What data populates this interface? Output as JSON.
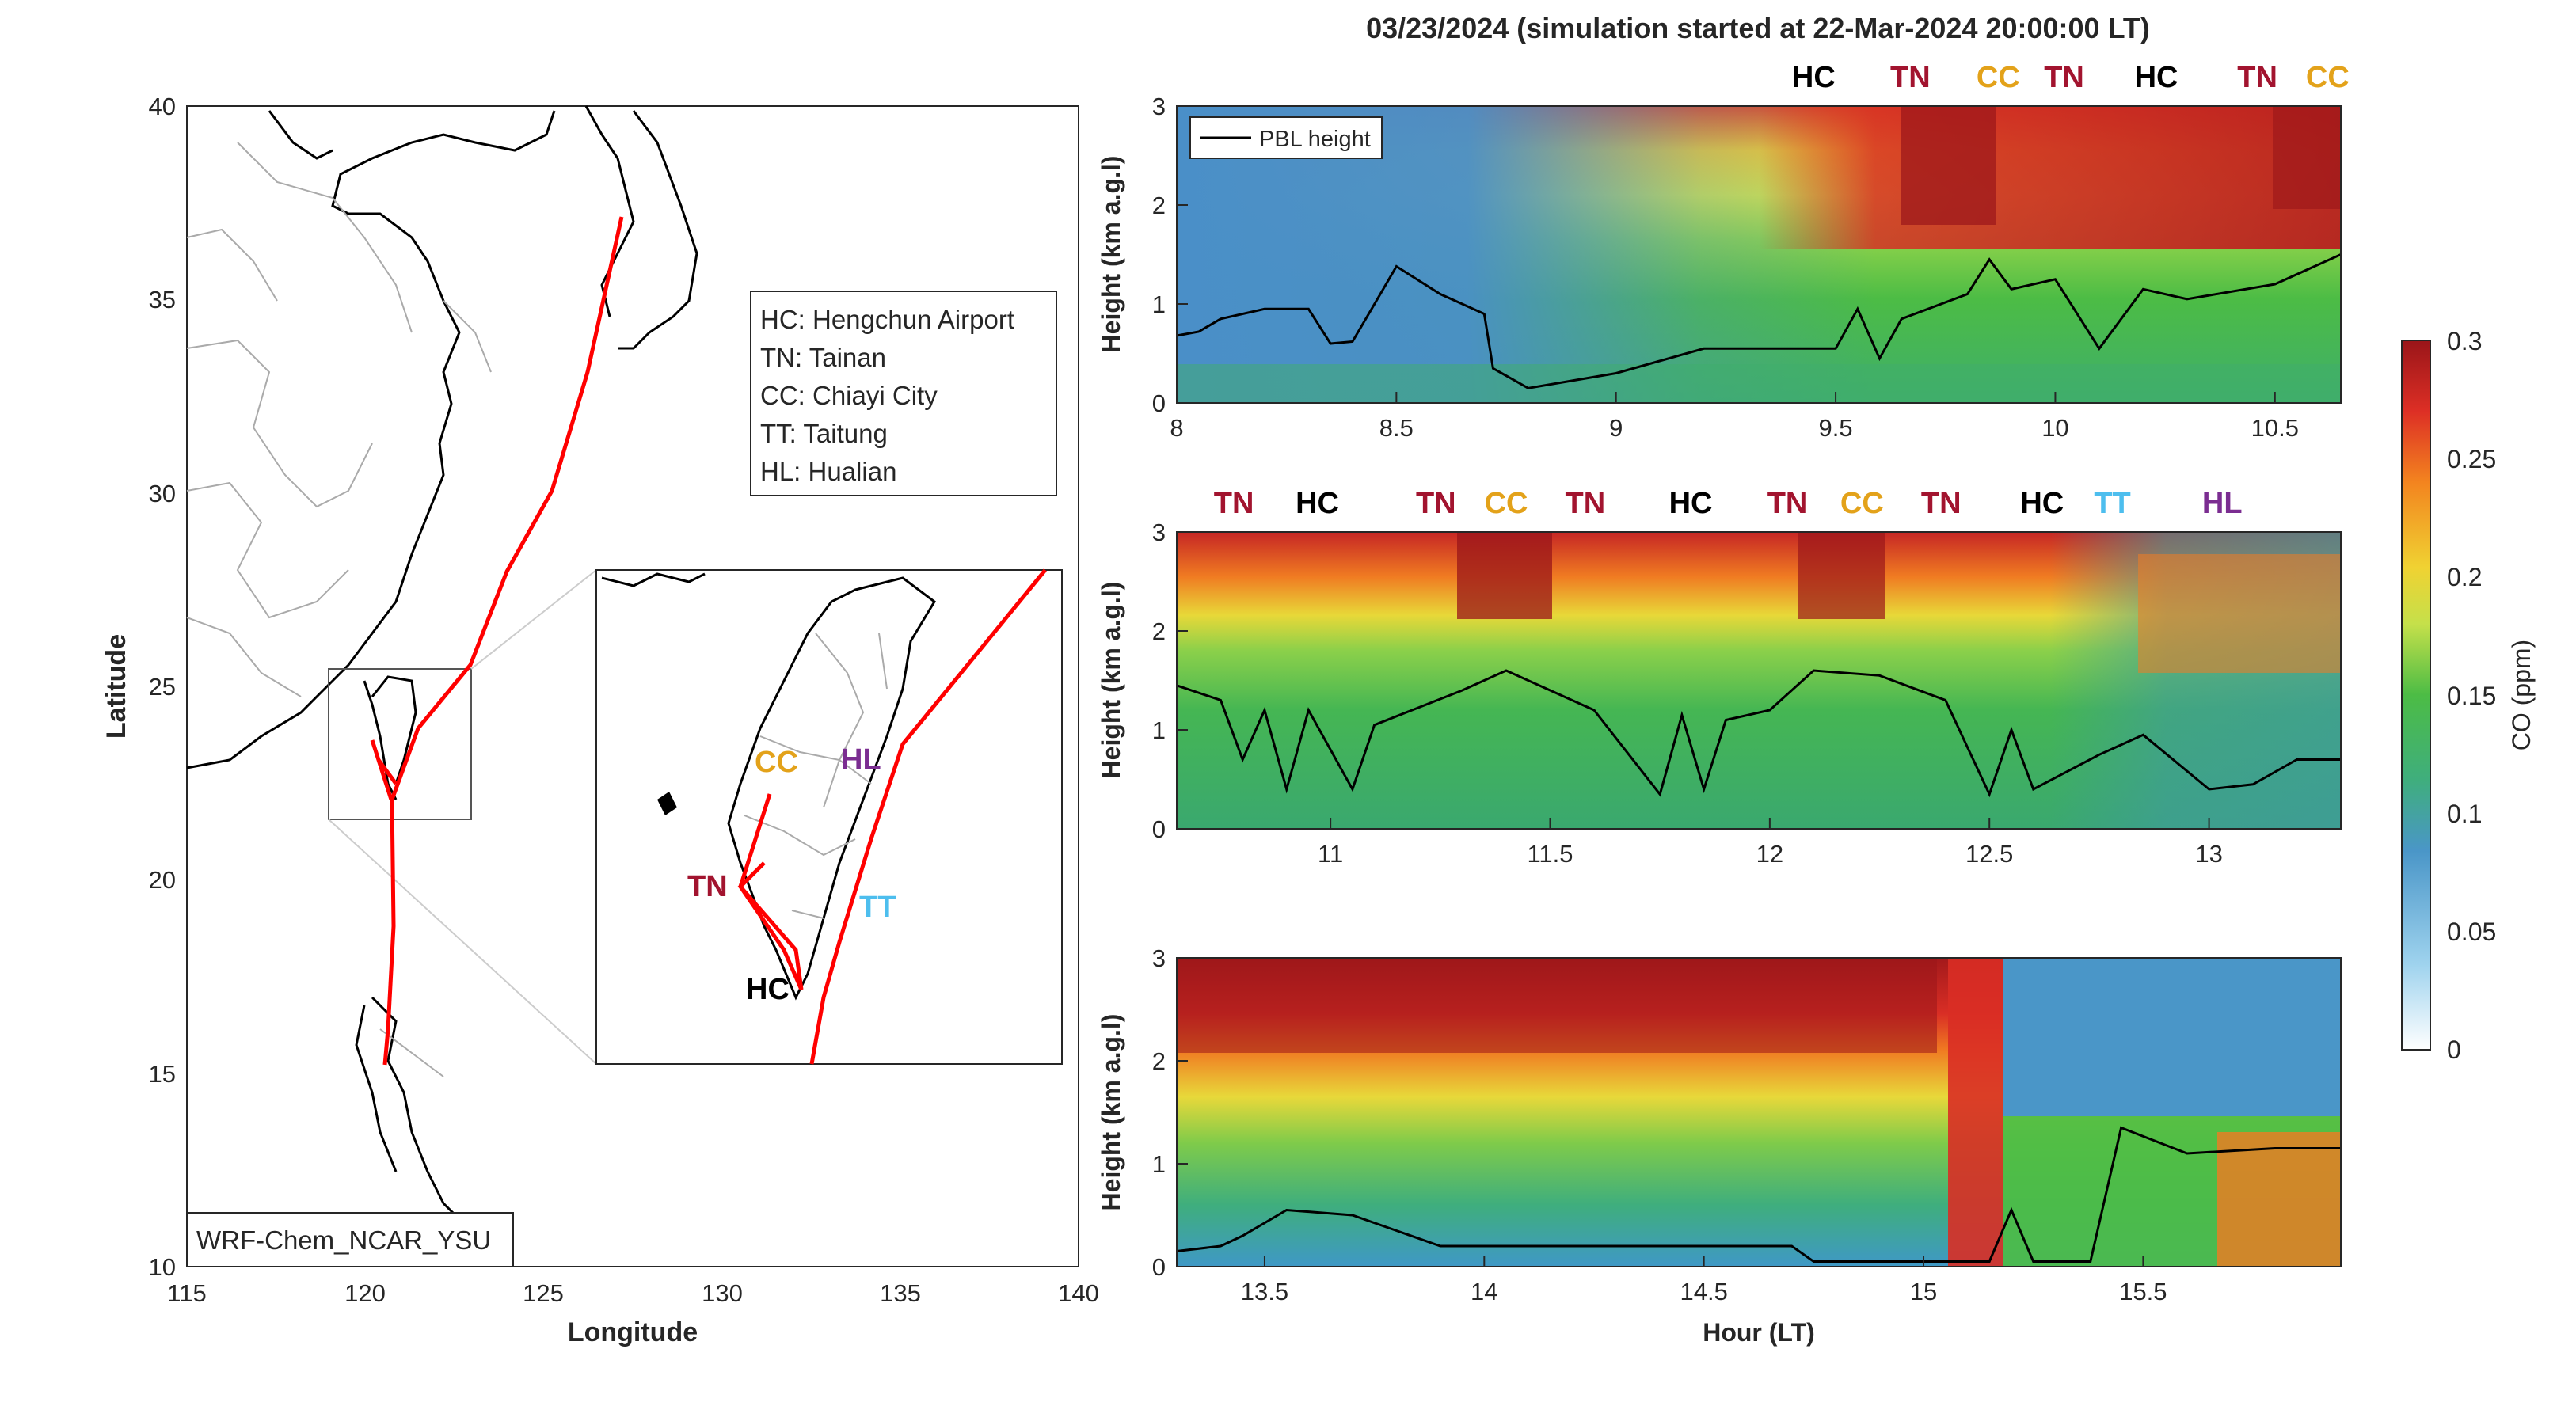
{
  "figure": {
    "title": "03/23/2024 (simulation started at 22-Mar-2024 20:00:00 LT)",
    "model_label": "WRF-Chem_NCAR_YSU"
  },
  "map": {
    "xlabel": "Longitude",
    "ylabel": "Latitude",
    "xlim": [
      115,
      140
    ],
    "ylim": [
      10,
      40
    ],
    "xticks": [
      "115",
      "120",
      "125",
      "130",
      "135",
      "140"
    ],
    "yticks": [
      "10",
      "15",
      "20",
      "25",
      "30",
      "35",
      "40"
    ],
    "legend_lines": [
      "HC: Hengchun Airport",
      "TN: Tainan",
      "CC: Chiayi City",
      "TT: Taitung",
      "HL: Hualian"
    ],
    "inset_labels": [
      {
        "text": "CC",
        "color": "#E3A21A"
      },
      {
        "text": "HL",
        "color": "#7B2D91"
      },
      {
        "text": "TN",
        "color": "#A2142F"
      },
      {
        "text": "TT",
        "color": "#4DBEEE"
      },
      {
        "text": "HC",
        "color": "#000000"
      }
    ],
    "flight_track_color": "#FF0000"
  },
  "colorbar": {
    "label": "CO (ppm)",
    "ticks": [
      "0",
      "0.05",
      "0.1",
      "0.15",
      "0.2",
      "0.25",
      "0.3"
    ]
  },
  "chart_data": [
    {
      "type": "heatmap",
      "xlabel": "",
      "ylabel": "Height (km a.g.l)",
      "xlim": [
        8,
        10.65
      ],
      "ylim": [
        0,
        3
      ],
      "xticks": [
        "8",
        "8.5",
        "9",
        "9.5",
        "10",
        "10.5"
      ],
      "yticks": [
        "0",
        "1",
        "2",
        "3"
      ],
      "legend": "PBL height",
      "site_labels": [
        {
          "text": "HC",
          "x": 9.45,
          "color": "#000000"
        },
        {
          "text": "TN",
          "x": 9.67,
          "color": "#A2142F"
        },
        {
          "text": "CC",
          "x": 9.87,
          "color": "#E3A21A"
        },
        {
          "text": "TN",
          "x": 10.02,
          "color": "#A2142F"
        },
        {
          "text": "HC",
          "x": 10.23,
          "color": "#000000"
        },
        {
          "text": "TN",
          "x": 10.46,
          "color": "#A2142F"
        },
        {
          "text": "CC",
          "x": 10.62,
          "color": "#E3A21A"
        }
      ],
      "pbl_height_km": [
        [
          8,
          0.68
        ],
        [
          8.05,
          0.72
        ],
        [
          8.1,
          0.85
        ],
        [
          8.2,
          0.95
        ],
        [
          8.3,
          0.95
        ],
        [
          8.35,
          0.6
        ],
        [
          8.4,
          0.62
        ],
        [
          8.47,
          1.15
        ],
        [
          8.5,
          1.38
        ],
        [
          8.6,
          1.1
        ],
        [
          8.7,
          0.9
        ],
        [
          8.72,
          0.35
        ],
        [
          8.8,
          0.15
        ],
        [
          9,
          0.3
        ],
        [
          9.2,
          0.55
        ],
        [
          9.5,
          0.55
        ],
        [
          9.55,
          0.95
        ],
        [
          9.6,
          0.45
        ],
        [
          9.65,
          0.85
        ],
        [
          9.8,
          1.1
        ],
        [
          9.85,
          1.45
        ],
        [
          9.9,
          1.15
        ],
        [
          10,
          1.25
        ],
        [
          10.1,
          0.55
        ],
        [
          10.2,
          1.15
        ],
        [
          10.3,
          1.05
        ],
        [
          10.5,
          1.2
        ],
        [
          10.65,
          1.5
        ]
      ]
    },
    {
      "type": "heatmap",
      "xlabel": "",
      "ylabel": "Height (km a.g.l)",
      "xlim": [
        10.65,
        13.3
      ],
      "ylim": [
        0,
        3
      ],
      "xticks": [
        "11",
        "11.5",
        "12",
        "12.5",
        "13"
      ],
      "yticks": [
        "0",
        "1",
        "2",
        "3"
      ],
      "site_labels": [
        {
          "text": "TN",
          "x": 10.78,
          "color": "#A2142F"
        },
        {
          "text": "HC",
          "x": 10.97,
          "color": "#000000"
        },
        {
          "text": "TN",
          "x": 11.24,
          "color": "#A2142F"
        },
        {
          "text": "CC",
          "x": 11.4,
          "color": "#E3A21A"
        },
        {
          "text": "TN",
          "x": 11.58,
          "color": "#A2142F"
        },
        {
          "text": "HC",
          "x": 11.82,
          "color": "#000000"
        },
        {
          "text": "TN",
          "x": 12.04,
          "color": "#A2142F"
        },
        {
          "text": "CC",
          "x": 12.21,
          "color": "#E3A21A"
        },
        {
          "text": "TN",
          "x": 12.39,
          "color": "#A2142F"
        },
        {
          "text": "HC",
          "x": 12.62,
          "color": "#000000"
        },
        {
          "text": "TT",
          "x": 12.78,
          "color": "#4DBEEE"
        },
        {
          "text": "HL",
          "x": 13.03,
          "color": "#7B2D91"
        }
      ],
      "pbl_height_km": [
        [
          10.65,
          1.45
        ],
        [
          10.75,
          1.3
        ],
        [
          10.8,
          0.7
        ],
        [
          10.85,
          1.2
        ],
        [
          10.9,
          0.4
        ],
        [
          10.95,
          1.2
        ],
        [
          11.05,
          0.4
        ],
        [
          11.1,
          1.05
        ],
        [
          11.3,
          1.4
        ],
        [
          11.4,
          1.6
        ],
        [
          11.6,
          1.2
        ],
        [
          11.75,
          0.35
        ],
        [
          11.8,
          1.15
        ],
        [
          11.85,
          0.4
        ],
        [
          11.9,
          1.1
        ],
        [
          12,
          1.2
        ],
        [
          12.1,
          1.6
        ],
        [
          12.25,
          1.55
        ],
        [
          12.4,
          1.3
        ],
        [
          12.5,
          0.35
        ],
        [
          12.55,
          1.0
        ],
        [
          12.6,
          0.4
        ],
        [
          12.75,
          0.75
        ],
        [
          12.85,
          0.95
        ],
        [
          13.0,
          0.4
        ],
        [
          13.1,
          0.45
        ],
        [
          13.2,
          0.7
        ],
        [
          13.3,
          0.7
        ]
      ]
    },
    {
      "type": "heatmap",
      "xlabel": "Hour (LT)",
      "ylabel": "Height (km a.g.l)",
      "xlim": [
        13.3,
        15.95
      ],
      "ylim": [
        0,
        3
      ],
      "xticks": [
        "13.5",
        "14",
        "14.5",
        "15",
        "15.5"
      ],
      "yticks": [
        "0",
        "1",
        "2",
        "3"
      ],
      "pbl_height_km": [
        [
          13.3,
          0.15
        ],
        [
          13.4,
          0.2
        ],
        [
          13.45,
          0.3
        ],
        [
          13.55,
          0.55
        ],
        [
          13.7,
          0.5
        ],
        [
          13.8,
          0.35
        ],
        [
          13.9,
          0.2
        ],
        [
          14.5,
          0.2
        ],
        [
          14.7,
          0.2
        ],
        [
          14.75,
          0.05
        ],
        [
          15.1,
          0.05
        ],
        [
          15.15,
          0.05
        ],
        [
          15.2,
          0.55
        ],
        [
          15.25,
          0.05
        ],
        [
          15.38,
          0.05
        ],
        [
          15.45,
          1.35
        ],
        [
          15.6,
          1.1
        ],
        [
          15.8,
          1.15
        ],
        [
          15.95,
          1.15
        ]
      ]
    }
  ]
}
